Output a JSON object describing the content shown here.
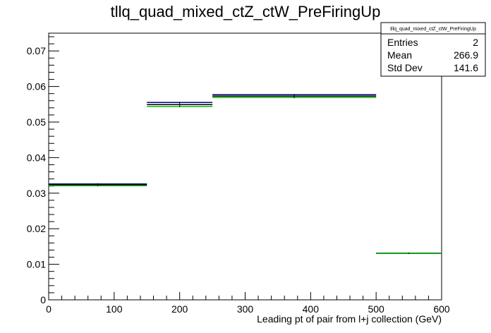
{
  "chart_data": {
    "type": "histogram",
    "title": "tllq_quad_mixed_ctZ_ctW_PreFiringUp",
    "xlabel": "Leading pt of pair from l+j collection (GeV)",
    "ylabel": "",
    "xlim": [
      0,
      600
    ],
    "ylim": [
      0,
      0.075
    ],
    "x_ticks": [
      0,
      100,
      200,
      300,
      400,
      500,
      600
    ],
    "x_tick_labels": [
      "0",
      "100",
      "200",
      "300",
      "400",
      "500",
      "600"
    ],
    "y_ticks": [
      0,
      0.01,
      0.02,
      0.03,
      0.04,
      0.05,
      0.06,
      0.07
    ],
    "y_tick_labels": [
      "0",
      "0.01",
      "0.02",
      "0.03",
      "0.04",
      "0.05",
      "0.06",
      "0.07"
    ],
    "grid": false,
    "bins": [
      {
        "low": 0,
        "high": 150
      },
      {
        "low": 150,
        "high": 250
      },
      {
        "low": 250,
        "high": 500
      },
      {
        "low": 500,
        "high": 600
      }
    ],
    "series": [
      {
        "color": "#000080",
        "values": [
          0.0326,
          0.0555,
          0.0577,
          0.0131
        ]
      },
      {
        "color": "#000000",
        "values": [
          0.0324,
          0.0549,
          0.0573,
          0.0131
        ]
      },
      {
        "color": "#00bb00",
        "values": [
          0.0321,
          0.0544,
          0.0569,
          0.0131
        ]
      }
    ]
  },
  "stats_box": {
    "title": "tllq_quad_mixed_ctZ_ctW_PreFiringUp",
    "rows": [
      {
        "label": "Entries",
        "value": "2"
      },
      {
        "label": "Mean",
        "value": "266.9"
      },
      {
        "label": "Std Dev",
        "value": "141.6"
      }
    ]
  }
}
